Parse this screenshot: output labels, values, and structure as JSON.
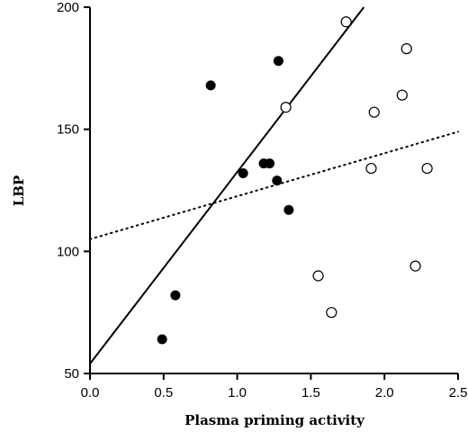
{
  "chart_data": {
    "type": "scatter",
    "title": "",
    "xlabel": "Plasma priming activity",
    "ylabel": "LBP",
    "xlim": [
      0.0,
      2.5
    ],
    "ylim": [
      50,
      200
    ],
    "xticks": [
      0.0,
      0.5,
      1.0,
      1.5,
      2.0,
      2.5
    ],
    "xtick_labels": [
      "0.0",
      "0.5",
      "1.0",
      "1.5",
      "2.0",
      "2.5"
    ],
    "yticks": [
      50,
      100,
      150,
      200
    ],
    "ytick_labels": [
      "50",
      "100",
      "150",
      "200"
    ],
    "grid": false,
    "legend": "none",
    "series": [
      {
        "marker": "filled-circle",
        "color": "#000000",
        "x": [
          0.49,
          0.58,
          0.82,
          1.04,
          1.18,
          1.22,
          1.27,
          1.28,
          1.35
        ],
        "y": [
          64,
          82,
          168,
          132,
          136,
          136,
          129,
          178,
          117
        ]
      },
      {
        "marker": "open-circle",
        "color": "#000000",
        "x": [
          1.33,
          1.55,
          1.64,
          1.74,
          1.91,
          1.93,
          2.12,
          2.15,
          2.21,
          2.29
        ],
        "y": [
          159,
          90,
          75,
          194,
          134,
          157,
          164,
          183,
          94,
          134
        ]
      }
    ],
    "lines": [
      {
        "style": "solid",
        "x": [
          0.0,
          1.86
        ],
        "y": [
          54,
          200
        ]
      },
      {
        "style": "dotted",
        "x": [
          0.0,
          2.5
        ],
        "y": [
          105,
          149
        ]
      }
    ]
  }
}
